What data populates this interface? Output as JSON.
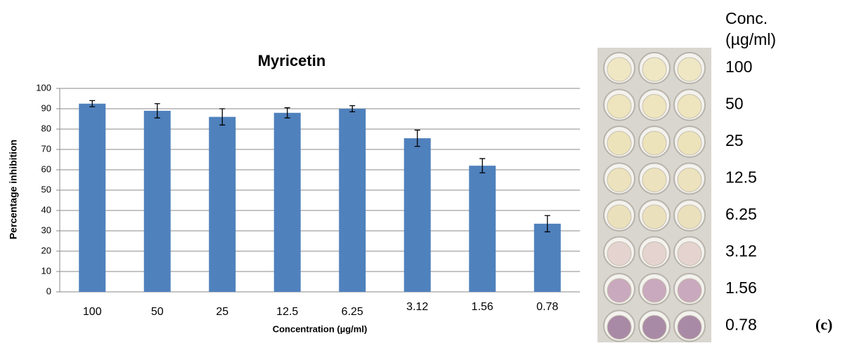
{
  "chart_data": {
    "type": "bar",
    "title": "Myricetin",
    "xlabel": "Concentration (µg/ml)",
    "ylabel": "Percentage inhibition",
    "categories": [
      "100",
      "50",
      "25",
      "12.5",
      "6.25",
      "3.12",
      "1.56",
      "0.78"
    ],
    "values": [
      92.5,
      89,
      86,
      88,
      90,
      75.5,
      62,
      33.5
    ],
    "errors": [
      1.5,
      3.5,
      4,
      2.5,
      1.5,
      4,
      3.5,
      4
    ],
    "color": "#4f81bd",
    "ylim": [
      0,
      100
    ],
    "yticks": [
      0,
      10,
      20,
      30,
      40,
      50,
      60,
      70,
      80,
      90,
      100
    ],
    "grid": true
  },
  "plate": {
    "header": [
      "Conc.",
      "(µg/ml)"
    ],
    "labels": [
      "100",
      "50",
      "25",
      "12.5",
      "6.25",
      "3.12",
      "1.56",
      "0.78"
    ]
  },
  "panel_label": "(c)"
}
